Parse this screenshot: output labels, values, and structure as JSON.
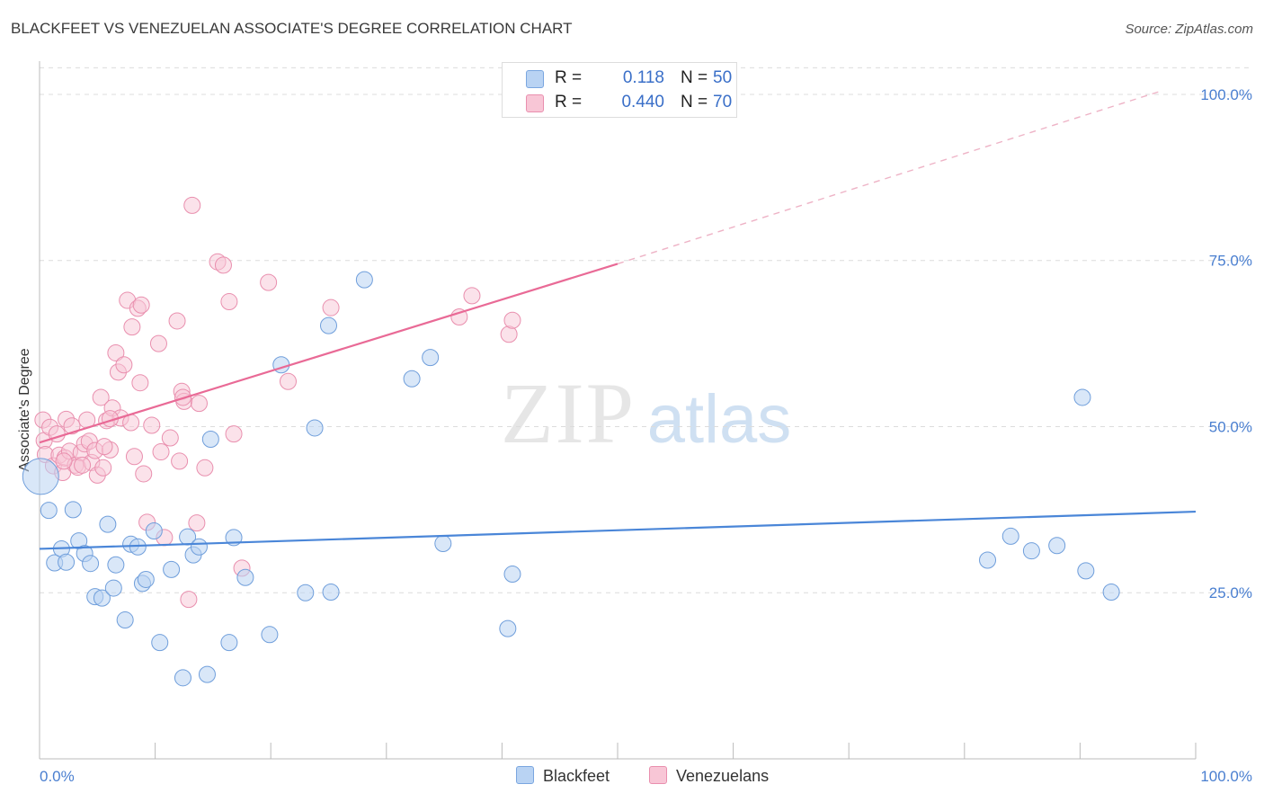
{
  "title": "BLACKFEET VS VENEZUELAN ASSOCIATE'S DEGREE CORRELATION CHART",
  "source": "Source: ZipAtlas.com",
  "watermark": {
    "part1": "ZIP",
    "part2": "atlas"
  },
  "colors": {
    "blackfeet": "#4a86d8",
    "venezuelans": "#e96a96",
    "tick": "#4a7fd0",
    "grid": "#dcdcdc"
  },
  "legend": {
    "rows": [
      {
        "r_label": "R =",
        "r_value": "0.118",
        "n_label": "N =",
        "n_value": "50"
      },
      {
        "r_label": "R =",
        "r_value": "0.440",
        "n_label": "N =",
        "n_value": "70"
      }
    ]
  },
  "bottom_legend": {
    "blackfeet": "Blackfeet",
    "venezuelans": "Venezuelans"
  },
  "chart_data": {
    "type": "scatter",
    "title": "BLACKFEET VS VENEZUELAN ASSOCIATE'S DEGREE CORRELATION CHART",
    "xlabel": "",
    "ylabel": "Associate's Degree",
    "xlim": [
      0,
      100
    ],
    "ylim": [
      0,
      105
    ],
    "x_tick_labels": [
      "0.0%",
      "100.0%"
    ],
    "y_ticks": [
      {
        "value": 25,
        "label": "25.0%"
      },
      {
        "value": 50,
        "label": "50.0%"
      },
      {
        "value": 75,
        "label": "75.0%"
      },
      {
        "value": 100,
        "label": "100.0%"
      }
    ],
    "grid": true,
    "legend_position": "top-center",
    "series": [
      {
        "name": "Blackfeet",
        "color": "#4a86d8",
        "trend": {
          "x0": 0,
          "y0": 31.6,
          "x1": 100,
          "y1": 37.2
        },
        "points": [
          [
            0.1,
            42.5
          ],
          [
            0.8,
            37.4
          ],
          [
            1.3,
            29.5
          ],
          [
            1.9,
            31.6
          ],
          [
            2.3,
            29.6
          ],
          [
            2.9,
            37.5
          ],
          [
            3.4,
            32.8
          ],
          [
            3.9,
            30.9
          ],
          [
            4.4,
            29.4
          ],
          [
            4.8,
            24.4
          ],
          [
            5.4,
            24.2
          ],
          [
            5.9,
            35.3
          ],
          [
            6.4,
            25.7
          ],
          [
            6.6,
            29.2
          ],
          [
            7.4,
            20.9
          ],
          [
            7.9,
            32.3
          ],
          [
            8.5,
            31.9
          ],
          [
            8.9,
            26.4
          ],
          [
            9.2,
            27.0
          ],
          [
            9.9,
            34.3
          ],
          [
            10.4,
            17.5
          ],
          [
            11.4,
            28.5
          ],
          [
            12.4,
            12.2
          ],
          [
            12.8,
            33.4
          ],
          [
            13.3,
            30.7
          ],
          [
            13.8,
            31.9
          ],
          [
            14.5,
            12.7
          ],
          [
            14.8,
            48.1
          ],
          [
            16.4,
            17.5
          ],
          [
            16.8,
            33.3
          ],
          [
            17.8,
            27.3
          ],
          [
            19.9,
            18.7
          ],
          [
            20.9,
            59.3
          ],
          [
            23.0,
            25.0
          ],
          [
            23.8,
            49.8
          ],
          [
            25.0,
            65.2
          ],
          [
            25.2,
            25.1
          ],
          [
            28.1,
            72.1
          ],
          [
            32.2,
            57.2
          ],
          [
            33.8,
            60.4
          ],
          [
            34.9,
            32.4
          ],
          [
            40.5,
            19.6
          ],
          [
            40.9,
            27.8
          ],
          [
            82.0,
            29.9
          ],
          [
            84.0,
            33.5
          ],
          [
            85.8,
            31.3
          ],
          [
            88.0,
            32.1
          ],
          [
            90.2,
            54.4
          ],
          [
            90.5,
            28.3
          ],
          [
            92.7,
            25.1
          ]
        ]
      },
      {
        "name": "Venezuelans",
        "color": "#e96a96",
        "trend": {
          "x0": 0,
          "y0": 47.6,
          "x1": 50,
          "y1": 74.5
        },
        "trend_extension": {
          "x0": 50,
          "y0": 74.5,
          "x1": 97,
          "y1": 100.5
        },
        "points": [
          [
            0.3,
            51.0
          ],
          [
            0.4,
            47.9
          ],
          [
            0.5,
            45.8
          ],
          [
            0.9,
            49.9
          ],
          [
            1.2,
            44.1
          ],
          [
            1.5,
            48.9
          ],
          [
            1.7,
            45.7
          ],
          [
            2.0,
            43.1
          ],
          [
            2.2,
            45.3
          ],
          [
            2.3,
            51.1
          ],
          [
            2.6,
            46.3
          ],
          [
            2.8,
            50.1
          ],
          [
            3.1,
            44.2
          ],
          [
            3.3,
            43.9
          ],
          [
            3.6,
            46.1
          ],
          [
            3.9,
            47.4
          ],
          [
            4.1,
            51.0
          ],
          [
            4.3,
            47.8
          ],
          [
            4.5,
            44.6
          ],
          [
            4.8,
            46.4
          ],
          [
            5.0,
            42.7
          ],
          [
            5.3,
            54.4
          ],
          [
            5.5,
            43.8
          ],
          [
            5.8,
            50.9
          ],
          [
            6.1,
            46.5
          ],
          [
            6.3,
            52.8
          ],
          [
            6.6,
            61.1
          ],
          [
            6.8,
            58.2
          ],
          [
            7.0,
            51.3
          ],
          [
            7.3,
            59.3
          ],
          [
            7.6,
            69.0
          ],
          [
            7.9,
            50.6
          ],
          [
            8.0,
            65.0
          ],
          [
            8.2,
            45.5
          ],
          [
            8.5,
            67.8
          ],
          [
            8.7,
            56.6
          ],
          [
            8.8,
            68.3
          ],
          [
            9.0,
            42.9
          ],
          [
            9.3,
            35.6
          ],
          [
            9.7,
            50.2
          ],
          [
            10.3,
            62.5
          ],
          [
            10.5,
            46.2
          ],
          [
            10.8,
            33.3
          ],
          [
            11.3,
            48.3
          ],
          [
            11.9,
            65.9
          ],
          [
            12.1,
            44.8
          ],
          [
            12.3,
            55.3
          ],
          [
            12.5,
            53.8
          ],
          [
            12.9,
            24.0
          ],
          [
            13.2,
            83.3
          ],
          [
            13.6,
            35.5
          ],
          [
            13.8,
            53.5
          ],
          [
            14.3,
            43.8
          ],
          [
            15.4,
            74.8
          ],
          [
            15.9,
            74.3
          ],
          [
            16.4,
            68.8
          ],
          [
            16.8,
            48.9
          ],
          [
            17.5,
            28.7
          ],
          [
            19.8,
            71.7
          ],
          [
            21.5,
            56.8
          ],
          [
            25.2,
            67.9
          ],
          [
            36.3,
            66.5
          ],
          [
            37.4,
            69.7
          ],
          [
            40.6,
            63.9
          ],
          [
            40.9,
            66.0
          ],
          [
            12.4,
            54.4
          ],
          [
            6.1,
            51.2
          ],
          [
            3.7,
            44.2
          ],
          [
            2.1,
            44.8
          ],
          [
            5.6,
            47.0
          ]
        ]
      }
    ]
  }
}
